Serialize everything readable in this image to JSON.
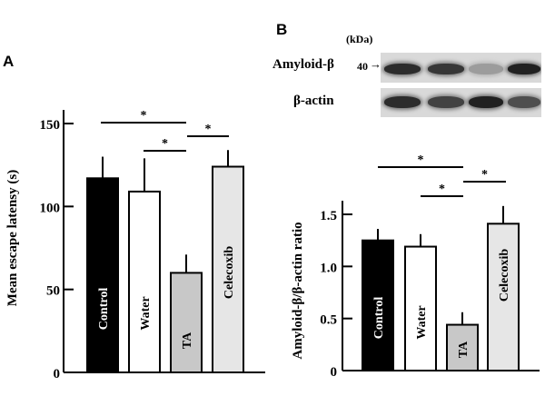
{
  "panels": {
    "a": {
      "letter": "A"
    },
    "b": {
      "letter": "B"
    }
  },
  "blot": {
    "unit_label": "(kDa)",
    "rows": [
      {
        "label": "Amyloid-β",
        "marker": "40",
        "arrow": "→",
        "intensity": [
          0.85,
          0.8,
          0.35,
          0.9
        ]
      },
      {
        "label": "β-actin",
        "marker": "",
        "arrow": "",
        "intensity": [
          0.85,
          0.75,
          0.9,
          0.7
        ]
      }
    ],
    "lanes": [
      "Control",
      "Water",
      "TA",
      "Celecoxib"
    ]
  },
  "chart_data": [
    {
      "type": "bar",
      "panel": "A",
      "title": "",
      "xlabel": "",
      "ylabel": "Mean escape latensy (s)",
      "ylim": [
        0,
        150
      ],
      "yticks": [
        0,
        50,
        100,
        150
      ],
      "categories": [
        "Control",
        "Water",
        "TA",
        "Celecoxib"
      ],
      "values": [
        117,
        109,
        60,
        124
      ],
      "errors": [
        13,
        20,
        11,
        10
      ],
      "bar_colors": [
        "#000000",
        "#ffffff",
        "#c8c8c8",
        "#e6e6e6"
      ],
      "label_colors": [
        "#ffffff",
        "#000000",
        "#000000",
        "#000000"
      ],
      "significance": [
        {
          "from": "Control",
          "to": "TA",
          "label": "*"
        },
        {
          "from": "Water",
          "to": "TA",
          "label": "*"
        },
        {
          "from": "TA",
          "to": "Celecoxib",
          "label": "*"
        }
      ],
      "grid": false,
      "legend": "none"
    },
    {
      "type": "bar",
      "panel": "B",
      "title": "",
      "xlabel": "",
      "ylabel": "Amyloid-β/β-actin  ratio",
      "ylim": [
        0,
        1.6
      ],
      "yticks": [
        0,
        0.5,
        1.0,
        1.5
      ],
      "ytick_labels": [
        "0",
        "0.5",
        "1.0",
        "1.5"
      ],
      "categories": [
        "Control",
        "Water",
        "TA",
        "Celecoxib"
      ],
      "values": [
        1.25,
        1.19,
        0.44,
        1.41
      ],
      "errors": [
        0.11,
        0.12,
        0.12,
        0.17
      ],
      "bar_colors": [
        "#000000",
        "#ffffff",
        "#c8c8c8",
        "#e6e6e6"
      ],
      "label_colors": [
        "#ffffff",
        "#000000",
        "#000000",
        "#000000"
      ],
      "significance": [
        {
          "from": "Control",
          "to": "TA",
          "label": "*"
        },
        {
          "from": "Water",
          "to": "TA",
          "label": "*"
        },
        {
          "from": "TA",
          "to": "Celecoxib",
          "label": "*"
        }
      ],
      "grid": false,
      "legend": "none"
    }
  ]
}
